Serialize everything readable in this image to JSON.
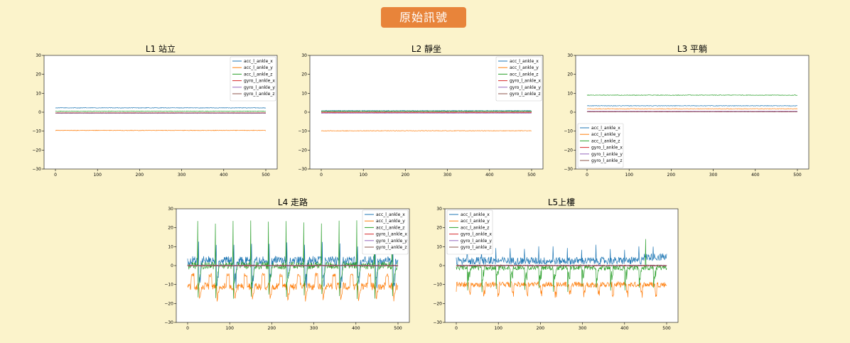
{
  "header": {
    "title": "原始訊號"
  },
  "colors": {
    "acc_l_ankle_x": "#1f77b4",
    "acc_l_ankle_y": "#ff7f0e",
    "acc_l_ankle_z": "#2ca02c",
    "gyro_l_ankle_x": "#d62728",
    "gyro_l_ankle_y": "#9467bd",
    "gyro_l_ankle_z": "#8c564b"
  },
  "chart_data": [
    {
      "type": "line",
      "title": "L1 站立",
      "xlim": [
        0,
        500
      ],
      "ylim": [
        -30,
        30
      ],
      "xticks": [
        0,
        100,
        200,
        300,
        400,
        500
      ],
      "yticks": [
        -30,
        -20,
        -10,
        0,
        10,
        20,
        30
      ],
      "legend_position": "top-right",
      "pattern": "flat",
      "series": [
        {
          "name": "acc_l_ankle_x",
          "level": 2.3,
          "noise": 0.15
        },
        {
          "name": "acc_l_ankle_y",
          "level": -9.6,
          "noise": 0.15
        },
        {
          "name": "acc_l_ankle_z",
          "level": 0.5,
          "noise": 0.15
        },
        {
          "name": "gyro_l_ankle_x",
          "level": -0.3,
          "noise": 0.05
        },
        {
          "name": "gyro_l_ankle_y",
          "level": -0.6,
          "noise": 0.05
        },
        {
          "name": "gyro_l_ankle_z",
          "level": -0.4,
          "noise": 0.05
        }
      ]
    },
    {
      "type": "line",
      "title": "L2 靜坐",
      "xlim": [
        0,
        500
      ],
      "ylim": [
        -30,
        30
      ],
      "xticks": [
        0,
        100,
        200,
        300,
        400,
        500
      ],
      "yticks": [
        -30,
        -20,
        -10,
        0,
        10,
        20,
        30
      ],
      "legend_position": "top-right",
      "pattern": "flat",
      "series": [
        {
          "name": "acc_l_ankle_x",
          "level": 0.8,
          "noise": 0.15
        },
        {
          "name": "acc_l_ankle_y",
          "level": -9.8,
          "noise": 0.15
        },
        {
          "name": "acc_l_ankle_z",
          "level": 0.6,
          "noise": 0.15
        },
        {
          "name": "gyro_l_ankle_x",
          "level": -0.2,
          "noise": 0.05
        },
        {
          "name": "gyro_l_ankle_y",
          "level": -0.5,
          "noise": 0.05
        },
        {
          "name": "gyro_l_ankle_z",
          "level": 0.2,
          "noise": 0.05
        }
      ]
    },
    {
      "type": "line",
      "title": "L3 平躺",
      "xlim": [
        0,
        500
      ],
      "ylim": [
        -30,
        30
      ],
      "xticks": [
        0,
        100,
        200,
        300,
        400,
        500
      ],
      "yticks": [
        -30,
        -20,
        -10,
        0,
        10,
        20,
        30
      ],
      "legend_position": "lower-left",
      "pattern": "flat",
      "series": [
        {
          "name": "acc_l_ankle_x",
          "level": 3.4,
          "noise": 0.15
        },
        {
          "name": "acc_l_ankle_y",
          "level": 1.8,
          "noise": 0.15
        },
        {
          "name": "acc_l_ankle_z",
          "level": 9.0,
          "noise": 0.15
        },
        {
          "name": "gyro_l_ankle_x",
          "level": 0.3,
          "noise": 0.05
        },
        {
          "name": "gyro_l_ankle_y",
          "level": 0.5,
          "noise": 0.05
        },
        {
          "name": "gyro_l_ankle_z",
          "level": 0.2,
          "noise": 0.05
        }
      ]
    },
    {
      "type": "line",
      "title": "L4 走路",
      "xlim": [
        0,
        500
      ],
      "ylim": [
        -30,
        30
      ],
      "xticks": [
        0,
        100,
        200,
        300,
        400,
        500
      ],
      "yticks": [
        -30,
        -20,
        -10,
        0,
        10,
        20,
        30
      ],
      "legend_position": "top-right",
      "pattern": "walk",
      "series": [
        {
          "name": "acc_l_ankle_x",
          "level": 2.5,
          "noise": 2.5
        },
        {
          "name": "acc_l_ankle_y",
          "level": -10,
          "noise": 1.5
        },
        {
          "name": "acc_l_ankle_z",
          "level": 0,
          "noise": 2.0
        },
        {
          "name": "gyro_l_ankle_x",
          "level": 0,
          "noise": 0.3
        },
        {
          "name": "gyro_l_ankle_y",
          "level": 0,
          "noise": 0.3
        },
        {
          "name": "gyro_l_ankle_z",
          "level": 0,
          "noise": 0.3
        }
      ]
    },
    {
      "type": "line",
      "title": "L5上樓",
      "xlim": [
        0,
        500
      ],
      "ylim": [
        -30,
        30
      ],
      "xticks": [
        0,
        100,
        200,
        300,
        400,
        500
      ],
      "yticks": [
        -30,
        -20,
        -10,
        0,
        10,
        20,
        30
      ],
      "legend_position": "top-left",
      "pattern": "stairs",
      "series": [
        {
          "name": "acc_l_ankle_x",
          "level": 2.5,
          "noise": 2.0
        },
        {
          "name": "acc_l_ankle_y",
          "level": -10,
          "noise": 1.5
        },
        {
          "name": "acc_l_ankle_z",
          "level": -2,
          "noise": 1.5
        },
        {
          "name": "gyro_l_ankle_x",
          "level": 0,
          "noise": 0.3
        },
        {
          "name": "gyro_l_ankle_y",
          "level": 0,
          "noise": 0.3
        },
        {
          "name": "gyro_l_ankle_z",
          "level": 0,
          "noise": 0.3
        }
      ]
    }
  ]
}
